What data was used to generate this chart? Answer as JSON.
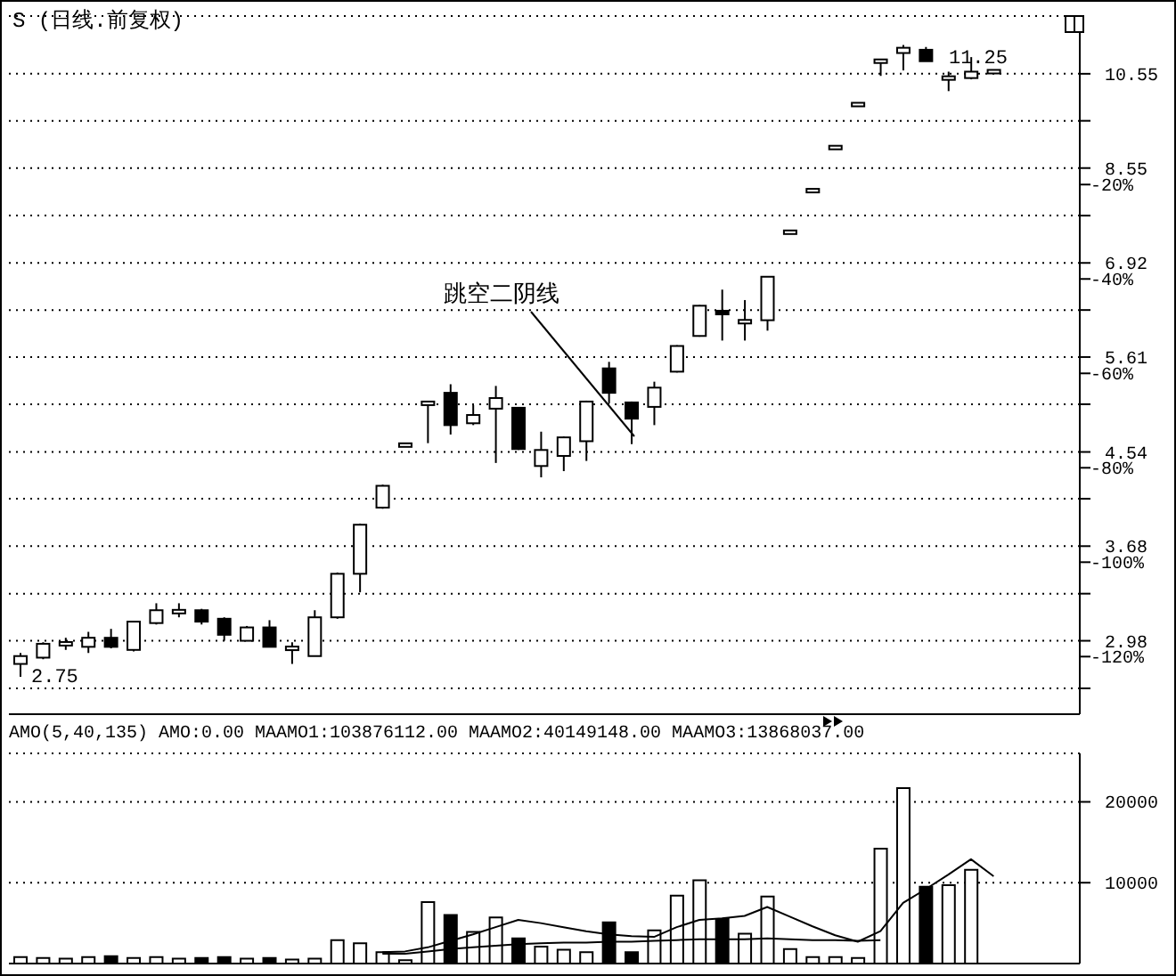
{
  "chart_data": [
    {
      "type": "candlestick",
      "title": "S (日线.前复权)",
      "categories": [
        null,
        null,
        null,
        null,
        null,
        null,
        null,
        null,
        null,
        null,
        null,
        null,
        null,
        null,
        null,
        null,
        null,
        null,
        null,
        null,
        null,
        null,
        null,
        null,
        null,
        null,
        null,
        null,
        null,
        null,
        null,
        null,
        null,
        null,
        null,
        null,
        null,
        null,
        null,
        null,
        null,
        null,
        null,
        null
      ],
      "ohlc": [
        [
          2.83,
          2.9,
          2.75,
          2.88
        ],
        [
          2.87,
          2.97,
          2.86,
          2.96
        ],
        [
          2.96,
          3.0,
          2.92,
          2.96
        ],
        [
          2.94,
          3.04,
          2.9,
          3.0
        ],
        [
          3.0,
          3.06,
          2.93,
          2.94
        ],
        [
          2.92,
          3.11,
          2.91,
          3.11
        ],
        [
          3.1,
          3.24,
          3.09,
          3.19
        ],
        [
          3.18,
          3.24,
          3.14,
          3.19
        ],
        [
          3.19,
          3.2,
          3.09,
          3.11
        ],
        [
          3.13,
          3.14,
          2.98,
          3.02
        ],
        [
          2.98,
          3.08,
          2.98,
          3.07
        ],
        [
          3.07,
          3.12,
          2.94,
          2.94
        ],
        [
          2.93,
          2.97,
          2.83,
          2.92
        ],
        [
          2.88,
          3.19,
          2.88,
          3.14
        ],
        [
          3.14,
          3.47,
          3.13,
          3.46
        ],
        [
          3.46,
          3.87,
          3.32,
          3.86
        ],
        [
          4.01,
          4.22,
          4.0,
          4.21
        ],
        [
          4.61,
          4.61,
          4.61,
          4.61
        ],
        [
          5.06,
          5.06,
          4.63,
          5.06
        ],
        [
          5.18,
          5.28,
          4.72,
          4.82
        ],
        [
          4.84,
          5.04,
          4.82,
          4.93
        ],
        [
          5.0,
          5.26,
          4.43,
          5.12
        ],
        [
          5.01,
          5.02,
          4.56,
          4.57
        ],
        [
          4.4,
          4.75,
          4.29,
          4.56
        ],
        [
          4.5,
          4.7,
          4.35,
          4.69
        ],
        [
          4.65,
          5.09,
          4.45,
          5.08
        ],
        [
          5.47,
          5.55,
          5.06,
          5.18
        ],
        [
          5.07,
          5.08,
          4.62,
          4.89
        ],
        [
          5.02,
          5.31,
          4.82,
          5.24
        ],
        [
          5.43,
          5.76,
          5.42,
          5.75
        ],
        [
          5.88,
          6.3,
          5.87,
          6.29
        ],
        [
          6.22,
          6.52,
          5.82,
          6.17
        ],
        [
          6.07,
          6.37,
          5.82,
          6.1
        ],
        [
          6.09,
          6.72,
          5.95,
          6.71
        ],
        [
          7.41,
          7.41,
          7.41,
          7.41
        ],
        [
          8.13,
          8.13,
          8.13,
          8.13
        ],
        [
          8.95,
          8.95,
          8.95,
          8.95
        ],
        [
          9.85,
          9.85,
          9.85,
          9.85
        ],
        [
          10.85,
          10.85,
          10.5,
          10.85
        ],
        [
          11.05,
          11.25,
          10.63,
          11.18
        ],
        [
          11.13,
          11.2,
          10.85,
          10.85
        ],
        [
          10.45,
          10.6,
          10.15,
          10.45
        ],
        [
          10.45,
          10.95,
          10.42,
          10.6
        ],
        [
          10.6,
          10.6,
          10.6,
          10.6
        ]
      ],
      "colors": [
        "#ffffff",
        "#ffffff",
        "#ffffff",
        "#ffffff",
        "#000000",
        "#ffffff",
        "#ffffff",
        "#ffffff",
        "#000000",
        "#000000",
        "#ffffff",
        "#000000",
        "#ffffff",
        "#ffffff",
        "#ffffff",
        "#ffffff",
        "#ffffff",
        "#ffffff",
        "#ffffff",
        "#000000",
        "#ffffff",
        "#ffffff",
        "#000000",
        "#ffffff",
        "#ffffff",
        "#ffffff",
        "#000000",
        "#000000",
        "#ffffff",
        "#ffffff",
        "#ffffff",
        "#000000",
        "#ffffff",
        "#ffffff",
        "#ffffff",
        "#ffffff",
        "#ffffff",
        "#ffffff",
        "#ffffff",
        "#ffffff",
        "#000000",
        "#ffffff",
        "#ffffff",
        "#ffffff"
      ],
      "log": true,
      "ylim": [
        2.53,
        12.0
      ],
      "yticks": [
        {
          "value": 2.68,
          "label": null
        },
        2.98,
        {
          "value": 3.31,
          "label": null
        },
        3.68,
        {
          "value": 4.09,
          "label": null
        },
        4.54,
        {
          "value": 5.05,
          "label": null
        },
        5.61,
        {
          "value": 6.23,
          "label": null
        },
        6.92,
        {
          "value": 7.69,
          "label": null
        },
        8.55,
        {
          "value": 9.5,
          "label": null
        },
        10.55
      ],
      "y2lim": [
        -132.2,
        15.7
      ],
      "y2ticks": [
        {
          "value": -120,
          "label": "-120%"
        },
        {
          "value": -100,
          "label": "-100%"
        },
        {
          "value": -80,
          "label": "-80%"
        },
        {
          "value": -60,
          "label": "-60%"
        },
        {
          "value": -40,
          "label": "-40%"
        },
        {
          "value": -20,
          "label": "-20%"
        }
      ],
      "grid": "y",
      "tick_labels": "y",
      "annotations": [
        "跳空二阴线",
        "2.75",
        "11.25"
      ]
    },
    {
      "type": "bar",
      "title": "AMO(5,40,135) AMO:0.00 MAAMO1:103876112.00 MAAMO2:40149148.00 MAAMO3:13868037.00",
      "categories": [
        null,
        null,
        null,
        null,
        null,
        null,
        null,
        null,
        null,
        null,
        null,
        null,
        null,
        null,
        null,
        null,
        null,
        null,
        null,
        null,
        null,
        null,
        null,
        null,
        null,
        null,
        null,
        null,
        null,
        null,
        null,
        null,
        null,
        null,
        null,
        null,
        null,
        null,
        null,
        null,
        null,
        null,
        null,
        null
      ],
      "series": [
        {
          "type": "bar",
          "values": [
            800,
            700,
            600,
            800,
            900,
            700,
            800,
            600,
            700,
            800,
            600,
            700,
            500,
            600,
            2900,
            2500,
            1400,
            400,
            7600,
            6000,
            3900,
            5700,
            3100,
            2100,
            1700,
            1400,
            5100,
            1400,
            4100,
            8400,
            10300,
            5500,
            3700,
            8300,
            1800,
            800,
            800,
            700,
            14200,
            21700,
            9500,
            9700,
            11600,
            null
          ],
          "colors": [
            "#ffffff",
            "#ffffff",
            "#ffffff",
            "#ffffff",
            "#000000",
            "#ffffff",
            "#ffffff",
            "#ffffff",
            "#000000",
            "#000000",
            "#ffffff",
            "#000000",
            "#ffffff",
            "#ffffff",
            "#ffffff",
            "#ffffff",
            "#ffffff",
            "#ffffff",
            "#ffffff",
            "#000000",
            "#ffffff",
            "#ffffff",
            "#000000",
            "#ffffff",
            "#ffffff",
            "#ffffff",
            "#000000",
            "#000000",
            "#ffffff",
            "#ffffff",
            "#ffffff",
            "#000000",
            "#ffffff",
            "#ffffff",
            "#ffffff",
            "#ffffff",
            "#ffffff",
            "#ffffff",
            "#ffffff",
            "#ffffff",
            "#000000",
            "#ffffff",
            "#ffffff",
            "#ffffff"
          ]
        },
        {
          "type": "line",
          "color": "#000000",
          "values": [
            null,
            null,
            null,
            null,
            null,
            null,
            null,
            null,
            null,
            null,
            null,
            null,
            null,
            null,
            null,
            null,
            1400,
            1500,
            2000,
            2800,
            3600,
            4500,
            5400,
            5000,
            4500,
            4000,
            3600,
            3400,
            3300,
            4500,
            5400,
            5600,
            5900,
            7000,
            5800,
            4600,
            3500,
            2700,
            4000,
            7500,
            9200,
            11000,
            12900,
            10800
          ]
        },
        {
          "type": "line",
          "color": "#000000",
          "values": [
            null,
            null,
            null,
            null,
            null,
            null,
            null,
            null,
            null,
            null,
            null,
            null,
            null,
            null,
            null,
            null,
            1200,
            1200,
            1500,
            1800,
            2000,
            2200,
            2400,
            2500,
            2600,
            2600,
            2700,
            2700,
            2800,
            2900,
            3000,
            3000,
            3000,
            3100,
            3000,
            2900,
            2900,
            2800,
            2900,
            null,
            null,
            null,
            null,
            null
          ]
        }
      ],
      "ylim": [
        0,
        26000
      ],
      "yticks": [
        10000,
        20000
      ],
      "grid": "y",
      "tick_labels": "y",
      "marker": "none"
    }
  ]
}
